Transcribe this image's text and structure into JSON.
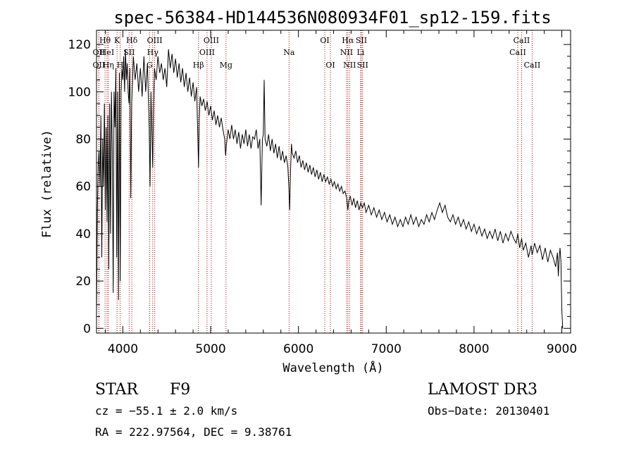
{
  "chart_data": {
    "type": "line",
    "title": "spec-56384-HD144536N080934F01_sp12-159.fits",
    "xlabel": "Wavelength (Å)",
    "ylabel": "Flux (relative)",
    "xlim": [
      3700,
      9100
    ],
    "ylim": [
      -2,
      126
    ],
    "xticks": [
      4000,
      5000,
      6000,
      7000,
      8000,
      9000
    ],
    "yticks": [
      0,
      20,
      40,
      60,
      80,
      100,
      120
    ],
    "grid": false,
    "line_color": "#000000",
    "marker_color": "#aa0000",
    "spectral_lines": [
      {
        "label": "OII",
        "x": 3727,
        "row": 3
      },
      {
        "label": "Hθ",
        "x": 3797,
        "row": 1
      },
      {
        "label": "OII",
        "x": 3727,
        "row": 2
      },
      {
        "label": "HeI",
        "x": 3820,
        "row": 2
      },
      {
        "label": "Hη",
        "x": 3835,
        "row": 3
      },
      {
        "label": "K",
        "x": 3934,
        "row": 1
      },
      {
        "label": "H",
        "x": 3969,
        "row": 3
      },
      {
        "label": "SII",
        "x": 4072,
        "row": 2
      },
      {
        "label": "Hδ",
        "x": 4102,
        "row": 1
      },
      {
        "label": "OIII",
        "x": 4363,
        "row": 1
      },
      {
        "label": "Hγ",
        "x": 4340,
        "row": 2
      },
      {
        "label": "G",
        "x": 4305,
        "row": 3
      },
      {
        "label": "Hβ",
        "x": 4861,
        "row": 3
      },
      {
        "label": "OIII",
        "x": 5007,
        "row": 1
      },
      {
        "label": "OIII",
        "x": 4959,
        "row": 2
      },
      {
        "label": "Mg",
        "x": 5175,
        "row": 3
      },
      {
        "label": "Na",
        "x": 5893,
        "row": 2
      },
      {
        "label": "OI",
        "x": 6300,
        "row": 1
      },
      {
        "label": "OI",
        "x": 6364,
        "row": 3
      },
      {
        "label": "Hα",
        "x": 6563,
        "row": 1
      },
      {
        "label": "NII",
        "x": 6548,
        "row": 2
      },
      {
        "label": "NII",
        "x": 6583,
        "row": 3
      },
      {
        "label": "SII",
        "x": 6717,
        "row": 1
      },
      {
        "label": "Li",
        "x": 6708,
        "row": 2
      },
      {
        "label": "SII",
        "x": 6731,
        "row": 3
      },
      {
        "label": "CaII",
        "x": 8542,
        "row": 1
      },
      {
        "label": "CaII",
        "x": 8498,
        "row": 2
      },
      {
        "label": "CaII",
        "x": 8662,
        "row": 3
      }
    ],
    "spectrum": [
      [
        3700,
        5
      ],
      [
        3710,
        50
      ],
      [
        3720,
        70
      ],
      [
        3730,
        75
      ],
      [
        3740,
        60
      ],
      [
        3750,
        90
      ],
      [
        3760,
        30
      ],
      [
        3770,
        80
      ],
      [
        3780,
        60
      ],
      [
        3790,
        95
      ],
      [
        3800,
        50
      ],
      [
        3810,
        85
      ],
      [
        3820,
        45
      ],
      [
        3830,
        90
      ],
      [
        3840,
        25
      ],
      [
        3850,
        95
      ],
      [
        3860,
        40
      ],
      [
        3870,
        100
      ],
      [
        3880,
        75
      ],
      [
        3890,
        15
      ],
      [
        3900,
        100
      ],
      [
        3910,
        85
      ],
      [
        3920,
        110
      ],
      [
        3930,
        30
      ],
      [
        3940,
        100
      ],
      [
        3950,
        12
      ],
      [
        3960,
        108
      ],
      [
        3970,
        20
      ],
      [
        3980,
        100
      ],
      [
        3990,
        110
      ],
      [
        4000,
        105
      ],
      [
        4010,
        115
      ],
      [
        4020,
        100
      ],
      [
        4030,
        118
      ],
      [
        4040,
        105
      ],
      [
        4050,
        112
      ],
      [
        4060,
        100
      ],
      [
        4070,
        95
      ],
      [
        4080,
        110
      ],
      [
        4090,
        55
      ],
      [
        4100,
        95
      ],
      [
        4110,
        104
      ],
      [
        4120,
        115
      ],
      [
        4140,
        105
      ],
      [
        4160,
        112
      ],
      [
        4180,
        100
      ],
      [
        4200,
        110
      ],
      [
        4220,
        98
      ],
      [
        4240,
        115
      ],
      [
        4260,
        100
      ],
      [
        4280,
        112
      ],
      [
        4300,
        85
      ],
      [
        4310,
        60
      ],
      [
        4320,
        100
      ],
      [
        4340,
        68
      ],
      [
        4350,
        95
      ],
      [
        4360,
        110
      ],
      [
        4380,
        105
      ],
      [
        4400,
        115
      ],
      [
        4420,
        108
      ],
      [
        4440,
        112
      ],
      [
        4460,
        105
      ],
      [
        4480,
        110
      ],
      [
        4500,
        102
      ],
      [
        4520,
        118
      ],
      [
        4540,
        110
      ],
      [
        4560,
        116
      ],
      [
        4580,
        108
      ],
      [
        4600,
        114
      ],
      [
        4620,
        106
      ],
      [
        4640,
        112
      ],
      [
        4660,
        104
      ],
      [
        4680,
        110
      ],
      [
        4700,
        102
      ],
      [
        4720,
        108
      ],
      [
        4740,
        100
      ],
      [
        4760,
        106
      ],
      [
        4780,
        98
      ],
      [
        4800,
        104
      ],
      [
        4820,
        96
      ],
      [
        4840,
        102
      ],
      [
        4855,
        80
      ],
      [
        4862,
        68
      ],
      [
        4870,
        88
      ],
      [
        4880,
        98
      ],
      [
        4900,
        94
      ],
      [
        4920,
        97
      ],
      [
        4940,
        92
      ],
      [
        4960,
        96
      ],
      [
        4980,
        90
      ],
      [
        5000,
        94
      ],
      [
        5020,
        88
      ],
      [
        5040,
        92
      ],
      [
        5060,
        86
      ],
      [
        5080,
        90
      ],
      [
        5100,
        85
      ],
      [
        5120,
        89
      ],
      [
        5140,
        84
      ],
      [
        5160,
        80
      ],
      [
        5170,
        73
      ],
      [
        5180,
        78
      ],
      [
        5200,
        84
      ],
      [
        5220,
        80
      ],
      [
        5240,
        86
      ],
      [
        5260,
        80
      ],
      [
        5280,
        84
      ],
      [
        5300,
        78
      ],
      [
        5320,
        83
      ],
      [
        5340,
        76
      ],
      [
        5360,
        82
      ],
      [
        5380,
        78
      ],
      [
        5400,
        84
      ],
      [
        5420,
        77
      ],
      [
        5440,
        82
      ],
      [
        5460,
        76
      ],
      [
        5480,
        81
      ],
      [
        5500,
        80
      ],
      [
        5520,
        84
      ],
      [
        5540,
        76
      ],
      [
        5560,
        80
      ],
      [
        5575,
        52
      ],
      [
        5590,
        80
      ],
      [
        5600,
        82
      ],
      [
        5610,
        105
      ],
      [
        5620,
        80
      ],
      [
        5640,
        77
      ],
      [
        5660,
        82
      ],
      [
        5680,
        75
      ],
      [
        5700,
        80
      ],
      [
        5720,
        74
      ],
      [
        5740,
        78
      ],
      [
        5760,
        72
      ],
      [
        5780,
        77
      ],
      [
        5800,
        71
      ],
      [
        5820,
        75
      ],
      [
        5840,
        70
      ],
      [
        5860,
        73
      ],
      [
        5880,
        68
      ],
      [
        5893,
        58
      ],
      [
        5900,
        50
      ],
      [
        5910,
        66
      ],
      [
        5920,
        78
      ],
      [
        5930,
        74
      ],
      [
        5950,
        72
      ],
      [
        5970,
        75
      ],
      [
        5990,
        70
      ],
      [
        6010,
        73
      ],
      [
        6030,
        68
      ],
      [
        6050,
        71
      ],
      [
        6070,
        67
      ],
      [
        6090,
        70
      ],
      [
        6110,
        66
      ],
      [
        6130,
        69
      ],
      [
        6150,
        65
      ],
      [
        6170,
        68
      ],
      [
        6190,
        64
      ],
      [
        6210,
        67
      ],
      [
        6230,
        63
      ],
      [
        6250,
        66
      ],
      [
        6270,
        62
      ],
      [
        6290,
        65
      ],
      [
        6310,
        62
      ],
      [
        6330,
        64
      ],
      [
        6350,
        61
      ],
      [
        6370,
        63
      ],
      [
        6390,
        60
      ],
      [
        6410,
        62
      ],
      [
        6430,
        59
      ],
      [
        6450,
        61
      ],
      [
        6470,
        58
      ],
      [
        6490,
        60
      ],
      [
        6510,
        57
      ],
      [
        6530,
        58
      ],
      [
        6550,
        55
      ],
      [
        6563,
        50
      ],
      [
        6575,
        54
      ],
      [
        6590,
        56
      ],
      [
        6610,
        52
      ],
      [
        6630,
        55
      ],
      [
        6650,
        51
      ],
      [
        6670,
        54
      ],
      [
        6690,
        50
      ],
      [
        6710,
        53
      ],
      [
        6730,
        51
      ],
      [
        6750,
        53
      ],
      [
        6770,
        49
      ],
      [
        6800,
        52
      ],
      [
        6830,
        48
      ],
      [
        6860,
        51
      ],
      [
        6890,
        47
      ],
      [
        6920,
        50
      ],
      [
        6950,
        46
      ],
      [
        6980,
        49
      ],
      [
        7010,
        45
      ],
      [
        7040,
        48
      ],
      [
        7070,
        44
      ],
      [
        7100,
        47
      ],
      [
        7130,
        43
      ],
      [
        7160,
        46
      ],
      [
        7190,
        43
      ],
      [
        7220,
        47
      ],
      [
        7250,
        44
      ],
      [
        7280,
        48
      ],
      [
        7310,
        44
      ],
      [
        7340,
        47
      ],
      [
        7370,
        43
      ],
      [
        7400,
        46
      ],
      [
        7430,
        44
      ],
      [
        7460,
        48
      ],
      [
        7490,
        45
      ],
      [
        7520,
        49
      ],
      [
        7550,
        46
      ],
      [
        7580,
        50
      ],
      [
        7610,
        53
      ],
      [
        7640,
        49
      ],
      [
        7670,
        52
      ],
      [
        7700,
        47
      ],
      [
        7730,
        45
      ],
      [
        7760,
        48
      ],
      [
        7790,
        44
      ],
      [
        7820,
        47
      ],
      [
        7850,
        43
      ],
      [
        7880,
        46
      ],
      [
        7910,
        42
      ],
      [
        7940,
        45
      ],
      [
        7970,
        41
      ],
      [
        8000,
        44
      ],
      [
        8030,
        40
      ],
      [
        8060,
        43
      ],
      [
        8090,
        39
      ],
      [
        8120,
        42
      ],
      [
        8150,
        38
      ],
      [
        8180,
        41
      ],
      [
        8210,
        38
      ],
      [
        8240,
        42
      ],
      [
        8270,
        37
      ],
      [
        8300,
        41
      ],
      [
        8330,
        36
      ],
      [
        8360,
        40
      ],
      [
        8390,
        37
      ],
      [
        8420,
        41
      ],
      [
        8450,
        38
      ],
      [
        8480,
        36
      ],
      [
        8498,
        40
      ],
      [
        8520,
        34
      ],
      [
        8542,
        38
      ],
      [
        8560,
        33
      ],
      [
        8590,
        36
      ],
      [
        8620,
        30
      ],
      [
        8650,
        35
      ],
      [
        8662,
        31
      ],
      [
        8690,
        36
      ],
      [
        8720,
        32
      ],
      [
        8750,
        35
      ],
      [
        8780,
        29
      ],
      [
        8810,
        34
      ],
      [
        8840,
        28
      ],
      [
        8870,
        33
      ],
      [
        8900,
        30
      ],
      [
        8930,
        26
      ],
      [
        8950,
        32
      ],
      [
        8960,
        22
      ],
      [
        8970,
        30
      ],
      [
        8980,
        34
      ],
      [
        8990,
        28
      ],
      [
        9000,
        8
      ],
      [
        9010,
        0
      ]
    ]
  },
  "info": {
    "object_type": "STAR",
    "subclass": "F9",
    "survey": "LAMOST DR3",
    "cz": "cz = −55.1 ± 2.0 km/s",
    "obs_date": "Obs−Date: 20130401",
    "coords": "RA = 222.97564, DEC =   9.38761"
  }
}
